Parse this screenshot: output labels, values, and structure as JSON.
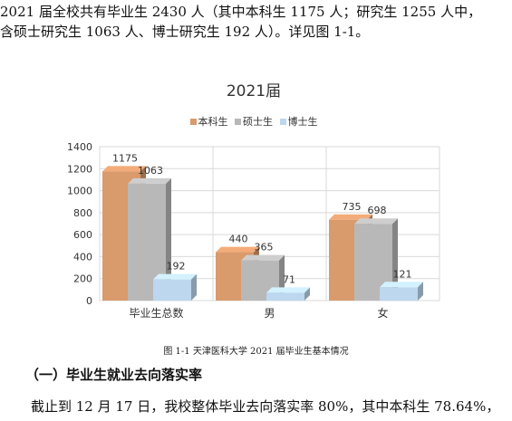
{
  "paragraphs": {
    "p1": "   2021 届全校共有毕业生 2430 人（其中本科生 1175 人；研究生 1255 人中，",
    "p2": "含硕士研究生 1063 人、博士研究生 192 人）。详见图 1-1。",
    "p3": "截止到 12 月 17 日，我校整体毕业去向落实率 80%，其中本科生 78.64%，"
  },
  "figure_caption": "图 1-1   天津医科大学 2021 届毕业生基本情况",
  "section_heading": "（一）毕业生就业去向落实率",
  "colors": {
    "undergrad": "#d99a6c",
    "master": "#b8b8b8",
    "doctor": "#bcd7ee",
    "grid": "#d9d9d9"
  },
  "chart_data": {
    "type": "bar",
    "title": "2021届",
    "categories": [
      "毕业生总数",
      "男",
      "女"
    ],
    "series": [
      {
        "name": "本科生",
        "values": [
          1175,
          440,
          735
        ]
      },
      {
        "name": "硕士生",
        "values": [
          1063,
          365,
          698
        ]
      },
      {
        "name": "博士生",
        "values": [
          192,
          71,
          121
        ]
      }
    ],
    "ylim": [
      0,
      1400
    ],
    "yticks": [
      "0",
      "200",
      "400",
      "600",
      "800",
      "1000",
      "1200",
      "1400"
    ],
    "legend_position": "top",
    "grid": true,
    "style": "3d-bar"
  }
}
